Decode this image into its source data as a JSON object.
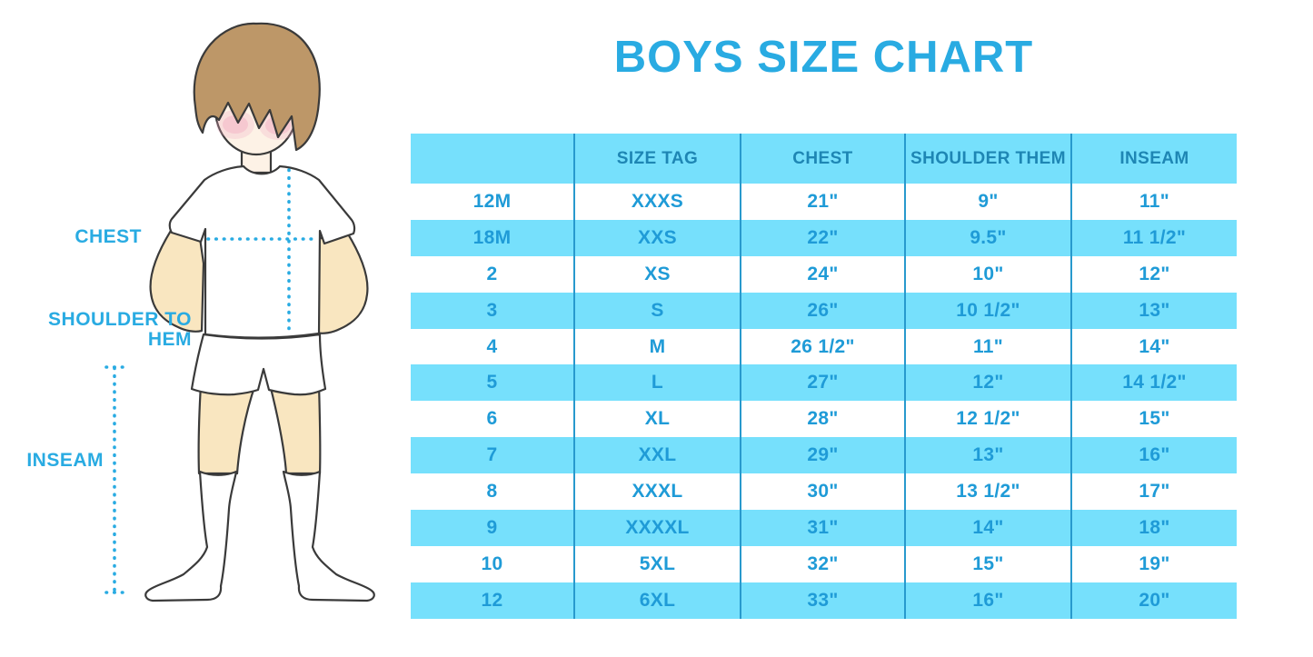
{
  "title": "BOYS SIZE CHART",
  "diagram": {
    "chest_label": "CHEST",
    "shoulder_label": "SHOULDER TO HEM",
    "inseam_label": "INSEAM"
  },
  "chart_data": {
    "type": "table",
    "title": "BOYS SIZE CHART",
    "columns": [
      "",
      "SIZE TAG",
      "CHEST",
      "SHOULDER THEM",
      "INSEAM"
    ],
    "rows": [
      [
        "12M",
        "XXXS",
        "21\"",
        "9\"",
        "11\""
      ],
      [
        "18M",
        "XXS",
        "22\"",
        "9.5\"",
        "11 1/2\""
      ],
      [
        "2",
        "XS",
        "24\"",
        "10\"",
        "12\""
      ],
      [
        "3",
        "S",
        "26\"",
        "10 1/2\"",
        "13\""
      ],
      [
        "4",
        "M",
        "26 1/2\"",
        "11\"",
        "14\""
      ],
      [
        "5",
        "L",
        "27\"",
        "12\"",
        "14 1/2\""
      ],
      [
        "6",
        "XL",
        "28\"",
        "12 1/2\"",
        "15\""
      ],
      [
        "7",
        "XXL",
        "29\"",
        "13\"",
        "16\""
      ],
      [
        "8",
        "XXXL",
        "30\"",
        "13 1/2\"",
        "17\""
      ],
      [
        "9",
        "XXXXL",
        "31\"",
        "14\"",
        "18\""
      ],
      [
        "10",
        "5XL",
        "32\"",
        "15\"",
        "19\""
      ],
      [
        "12",
        "6XL",
        "33\"",
        "16\"",
        "20\""
      ]
    ],
    "layout": {
      "banded_rows": true,
      "first_data_row_background": "white",
      "grid": "vertical-dividers-only",
      "legend": "none"
    }
  },
  "colors": {
    "accent_blue": "#29abe2",
    "band_cyan": "#76e0fc",
    "divider_blue": "#2899cd",
    "header_text": "#1e86b4",
    "cell_text": "#1f9bd7",
    "hair_brown": "#bd9768",
    "skin": "#f9e6c0",
    "face_skin": "#fdf2e6",
    "cheek_pink": "#f2aec2",
    "outline": "#3a3a3a"
  }
}
